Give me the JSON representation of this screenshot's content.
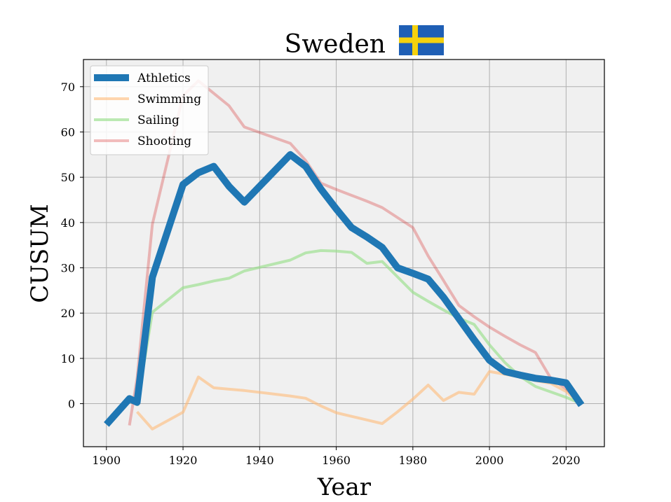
{
  "chart_data": {
    "type": "line",
    "title": "Sweden",
    "flag": {
      "name": "sweden-flag",
      "blue": "#1f5fb5",
      "yellow": "#f5d10d"
    },
    "xlabel": "Year",
    "ylabel": "CUSUM",
    "xlim": [
      1894,
      2030
    ],
    "ylim": [
      -9.5,
      76
    ],
    "xticks": [
      1900,
      1920,
      1940,
      1960,
      1980,
      2000,
      2020
    ],
    "yticks": [
      0,
      10,
      20,
      30,
      40,
      50,
      60,
      70
    ],
    "grid": true,
    "plot_background": "#f0f0f0",
    "legend": {
      "placement": "top-left"
    },
    "series": [
      {
        "name": "Athletics",
        "color": "#1f77b4",
        "opacity": 1.0,
        "emphasis": "bold",
        "points": [
          [
            1900,
            -4.6
          ],
          [
            1906,
            1.1
          ],
          [
            1908,
            0.3
          ],
          [
            1912,
            27.9
          ],
          [
            1920,
            48.4
          ],
          [
            1924,
            51.0
          ],
          [
            1928,
            52.4
          ],
          [
            1932,
            48.0
          ],
          [
            1936,
            44.5
          ],
          [
            1948,
            55.0
          ],
          [
            1952,
            52.4
          ],
          [
            1956,
            47.4
          ],
          [
            1960,
            43.0
          ],
          [
            1964,
            38.9
          ],
          [
            1968,
            36.8
          ],
          [
            1972,
            34.5
          ],
          [
            1976,
            30.0
          ],
          [
            1980,
            28.8
          ],
          [
            1984,
            27.5
          ],
          [
            1988,
            23.5
          ],
          [
            1992,
            18.8
          ],
          [
            1996,
            14.1
          ],
          [
            2000,
            9.6
          ],
          [
            2004,
            7.1
          ],
          [
            2008,
            6.3
          ],
          [
            2012,
            5.6
          ],
          [
            2016,
            5.2
          ],
          [
            2020,
            4.6
          ],
          [
            2024,
            -0.3
          ]
        ]
      },
      {
        "name": "Swimming",
        "color": "#ffbb78",
        "opacity": 0.6,
        "emphasis": "normal",
        "points": [
          [
            1908,
            -1.8
          ],
          [
            1912,
            -5.6
          ],
          [
            1920,
            -1.9
          ],
          [
            1924,
            5.9
          ],
          [
            1928,
            3.5
          ],
          [
            1932,
            3.2
          ],
          [
            1936,
            2.9
          ],
          [
            1948,
            1.7
          ],
          [
            1952,
            1.2
          ],
          [
            1956,
            -0.5
          ],
          [
            1960,
            -2.0
          ],
          [
            1964,
            -2.8
          ],
          [
            1968,
            -3.6
          ],
          [
            1972,
            -4.4
          ],
          [
            1976,
            -1.8
          ],
          [
            1980,
            1.0
          ],
          [
            1984,
            4.1
          ],
          [
            1988,
            0.7
          ],
          [
            1992,
            2.5
          ],
          [
            1996,
            2.1
          ],
          [
            2000,
            7.1
          ],
          [
            2004,
            6.5
          ],
          [
            2008,
            5.9
          ],
          [
            2012,
            5.1
          ],
          [
            2016,
            4.5
          ],
          [
            2020,
            2.7
          ],
          [
            2024,
            -0.2
          ]
        ]
      },
      {
        "name": "Sailing",
        "color": "#98df8a",
        "opacity": 0.65,
        "emphasis": "normal",
        "points": [
          [
            1908,
            -0.5
          ],
          [
            1912,
            20.2
          ],
          [
            1920,
            25.6
          ],
          [
            1924,
            26.3
          ],
          [
            1928,
            27.1
          ],
          [
            1932,
            27.7
          ],
          [
            1936,
            29.3
          ],
          [
            1948,
            31.7
          ],
          [
            1952,
            33.3
          ],
          [
            1956,
            33.8
          ],
          [
            1960,
            33.7
          ],
          [
            1964,
            33.4
          ],
          [
            1968,
            31.0
          ],
          [
            1972,
            31.4
          ],
          [
            1976,
            28.0
          ],
          [
            1980,
            24.6
          ],
          [
            1984,
            22.6
          ],
          [
            1988,
            20.7
          ],
          [
            1992,
            18.9
          ],
          [
            1996,
            17.5
          ],
          [
            2000,
            13.0
          ],
          [
            2004,
            9.1
          ],
          [
            2008,
            6.0
          ],
          [
            2012,
            3.8
          ],
          [
            2016,
            2.6
          ],
          [
            2020,
            1.4
          ],
          [
            2024,
            0.0
          ]
        ]
      },
      {
        "name": "Shooting",
        "color": "#d62728",
        "opacity": 0.3,
        "emphasis": "normal",
        "points": [
          [
            1906,
            -4.8
          ],
          [
            1908,
            5.6
          ],
          [
            1912,
            39.6
          ],
          [
            1920,
            68.0
          ],
          [
            1924,
            71.3
          ],
          [
            1932,
            65.8
          ],
          [
            1936,
            61.1
          ],
          [
            1948,
            57.5
          ],
          [
            1952,
            53.7
          ],
          [
            1956,
            48.7
          ],
          [
            1960,
            47.3
          ],
          [
            1964,
            46.0
          ],
          [
            1968,
            44.7
          ],
          [
            1972,
            43.3
          ],
          [
            1980,
            38.9
          ],
          [
            1984,
            32.6
          ],
          [
            1988,
            27.2
          ],
          [
            1992,
            21.7
          ],
          [
            1996,
            19.2
          ],
          [
            2000,
            16.9
          ],
          [
            2004,
            14.9
          ],
          [
            2008,
            13.0
          ],
          [
            2012,
            11.3
          ],
          [
            2016,
            5.6
          ],
          [
            2020,
            3.3
          ],
          [
            2024,
            -0.1
          ]
        ]
      }
    ]
  }
}
